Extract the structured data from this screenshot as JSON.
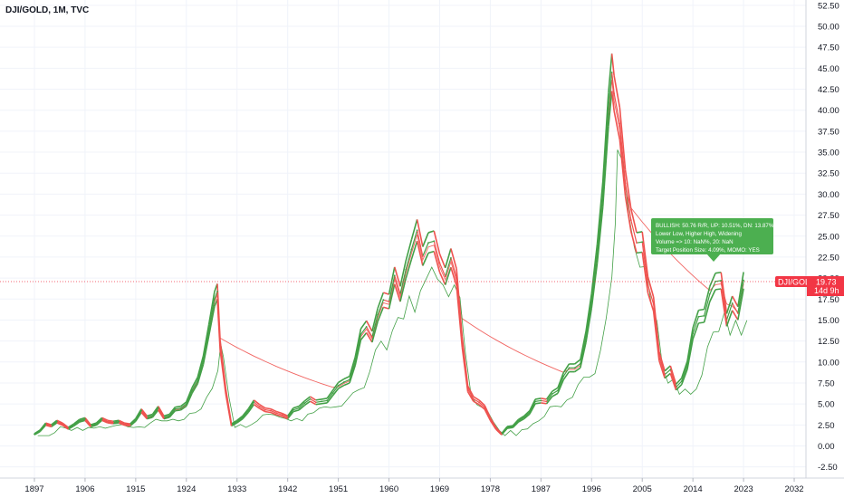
{
  "header": {
    "title": "DJI/GOLD, 1M, TVC"
  },
  "price_tag": {
    "symbol": "DJI/GOLD",
    "value": "19.73",
    "countdown": "14d 9h",
    "color": "#f23645"
  },
  "signal_box": {
    "color": "#4caf50",
    "lines": [
      "BULLISH: 50.76 R/R, UP: 10.51%, DN: 13.87%",
      "Lower Low, Higher High, Widening",
      "Volume => 10: NaN%, 20: NaN",
      "Target Position Size: 4.09%, MOMO: YES"
    ]
  },
  "colors": {
    "up": "#43a047",
    "down": "#ef5350",
    "last_line": "#f23645"
  },
  "chart_data": {
    "type": "line",
    "title": "DJI/GOLD, 1M, TVC",
    "x_ticks": [
      "1897",
      "1906",
      "1915",
      "1924",
      "1933",
      "1942",
      "1951",
      "1960",
      "1969",
      "1978",
      "1987",
      "1996",
      "2005",
      "2014",
      "2023",
      "2032"
    ],
    "y_ticks": [
      "-2.50",
      "0.00",
      "2.50",
      "5.00",
      "7.50",
      "10.00",
      "12.50",
      "15.00",
      "17.50",
      "20.00",
      "22.50",
      "25.00",
      "27.50",
      "30.00",
      "32.50",
      "35.00",
      "37.50",
      "40.00",
      "42.50",
      "45.00",
      "47.50",
      "50.00",
      "52.50"
    ],
    "xlim": [
      1896,
      2036
    ],
    "ylim": [
      -3.5,
      53
    ],
    "last_value": 19.73,
    "grid": true,
    "series": [
      {
        "x": [
          1897,
          1898,
          1899,
          1900,
          1901,
          1902,
          1903,
          1904,
          1905,
          1906,
          1907,
          1908,
          1909,
          1910,
          1911,
          1912,
          1913,
          1914,
          1915,
          1916,
          1917,
          1918,
          1919,
          1920,
          1921,
          1922,
          1923,
          1924,
          1925,
          1926,
          1927,
          1928,
          1929,
          1929.5,
          1930,
          1931,
          1932,
          1933,
          1934,
          1935,
          1936,
          1937,
          1938,
          1939,
          1940,
          1941,
          1942,
          1943,
          1944,
          1945,
          1946,
          1947,
          1948,
          1949,
          1950,
          1951,
          1952,
          1953,
          1954,
          1955,
          1956,
          1957,
          1958,
          1959,
          1960,
          1961,
          1962,
          1963,
          1964,
          1965,
          1966,
          1967,
          1968,
          1969,
          1970,
          1971,
          1972,
          1973,
          1974,
          1975,
          1976,
          1977,
          1978,
          1979,
          1980,
          1981,
          1982,
          1983,
          1984,
          1985,
          1986,
          1987,
          1988,
          1989,
          1990,
          1991,
          1992,
          1993,
          1994,
          1995,
          1996,
          1997,
          1998,
          1999,
          1999.6,
          2000,
          2001,
          2002,
          2003,
          2004,
          2005,
          2006,
          2007,
          2008,
          2009,
          2010,
          2011,
          2012,
          2013,
          2014,
          2015,
          2016,
          2017,
          2018,
          2019,
          2020,
          2021,
          2022,
          2023
        ],
        "y": [
          1.4,
          1.8,
          2.6,
          2.4,
          2.9,
          2.6,
          2.1,
          2.5,
          3.0,
          3.2,
          2.4,
          2.6,
          3.2,
          2.9,
          2.8,
          2.9,
          2.6,
          2.5,
          3.1,
          4.2,
          3.4,
          3.6,
          4.5,
          3.4,
          3.6,
          4.4,
          4.5,
          5.0,
          6.6,
          7.8,
          10.2,
          13.8,
          17.5,
          18.4,
          12.0,
          6.5,
          2.5,
          2.9,
          3.4,
          4.2,
          5.2,
          4.7,
          4.3,
          4.2,
          3.9,
          3.7,
          3.4,
          4.3,
          4.5,
          5.1,
          5.6,
          5.2,
          5.3,
          5.4,
          6.3,
          7.2,
          7.6,
          7.9,
          10.1,
          13.3,
          14.2,
          13.0,
          15.6,
          17.4,
          17.2,
          20.3,
          18.1,
          21.0,
          23.4,
          25.7,
          22.6,
          24.2,
          24.4,
          21.8,
          20.2,
          22.4,
          20.1,
          12.4,
          6.8,
          5.6,
          5.2,
          4.6,
          3.2,
          2.1,
          1.4,
          2.2,
          2.3,
          3.0,
          3.4,
          4.0,
          5.3,
          5.4,
          5.3,
          6.2,
          6.6,
          8.3,
          9.3,
          9.3,
          9.8,
          13.0,
          17.3,
          22.9,
          30.0,
          40.1,
          44.5,
          42.0,
          38.4,
          31.3,
          26.9,
          24.2,
          24.3,
          19.2,
          16.9,
          10.7,
          8.5,
          9.1,
          7.0,
          7.7,
          9.6,
          13.4,
          15.4,
          15.5,
          18.1,
          19.6,
          19.7,
          15.0,
          17.0,
          15.8,
          19.73
        ]
      }
    ]
  }
}
